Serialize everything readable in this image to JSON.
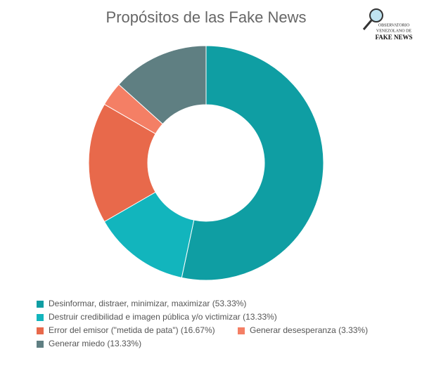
{
  "chart_data": {
    "type": "donut",
    "title": "Propósitos de las Fake News",
    "categories": [
      "Desinformar, distraer, minimizar, maximizar (53.33%)",
      "Destruir credibilidad e imagen pública y/o victimizar (13.33%)",
      "Error del emisor (\"metida de pata\") (16.67%)",
      "Generar desesperanza (3.33%)",
      "Generar miedo (13.33%)"
    ],
    "values": [
      53.33,
      13.33,
      16.67,
      3.33,
      13.33
    ],
    "colors": [
      "#0f9ea3",
      "#12b5bd",
      "#e8694b",
      "#f47f65",
      "#5f7f82"
    ],
    "legend": "bottom"
  },
  "logo": {
    "lines": [
      "OBSERVATORIO",
      "VENEZOLANO DE",
      "FAKE NEWS"
    ]
  }
}
